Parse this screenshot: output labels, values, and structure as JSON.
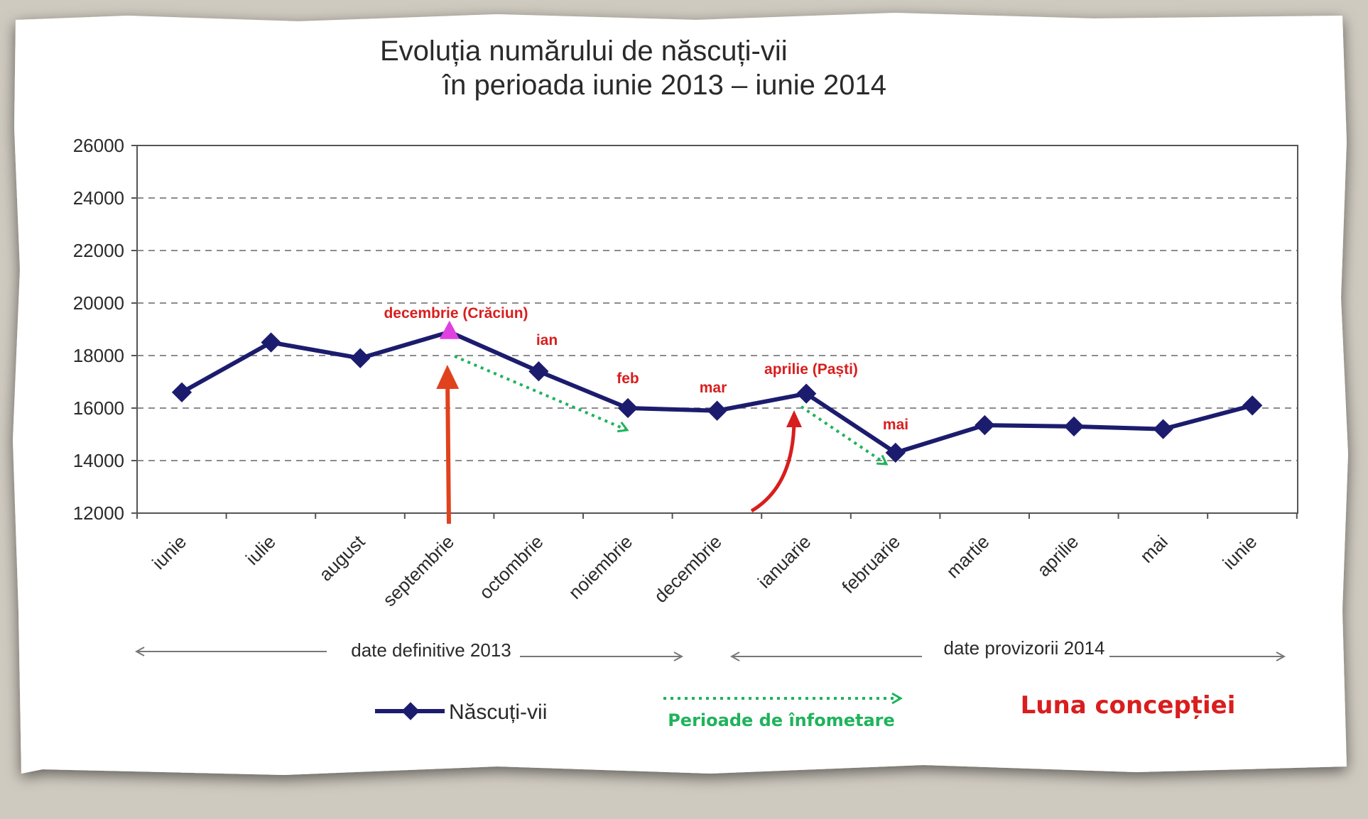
{
  "chart_data": {
    "type": "line",
    "title_line1": "Evoluția numărului de născuți-vii",
    "title_line2": "în perioada iunie 2013 – iunie 2014",
    "categories": [
      "iunie",
      "iulie",
      "august",
      "septembrie",
      "octombrie",
      "noiembrie",
      "decembrie",
      "ianuarie",
      "februarie",
      "martie",
      "aprilie",
      "mai",
      "iunie"
    ],
    "series": [
      {
        "name": "Născuți-vii",
        "values": [
          16600,
          18500,
          17900,
          18900,
          17400,
          16000,
          15900,
          16550,
          14300,
          15350,
          15300,
          15200,
          16100
        ],
        "color": "#1c1c6e"
      }
    ],
    "ylim": [
      12000,
      26000
    ],
    "yticks": [
      12000,
      14000,
      16000,
      18000,
      20000,
      22000,
      24000,
      26000
    ],
    "grid": "horizontal dashed",
    "periods": {
      "definitive": "date definitive 2013",
      "provisional": "date provizorii 2014"
    },
    "conception_labels": [
      "decembrie (Crăciun)",
      "ian",
      "feb",
      "mar",
      "aprilie (Paști)",
      "mai"
    ],
    "highlight_point": "septembrie",
    "legend": {
      "series": "Născuți-vii",
      "famine": "Perioade de înfometare",
      "conception": "Luna concepției"
    },
    "colors": {
      "line": "#1c1c6e",
      "annotation_red": "#d81e1e",
      "famine_green": "#1fb35c",
      "highlight": "#e040e0",
      "grid": "#666666"
    }
  }
}
